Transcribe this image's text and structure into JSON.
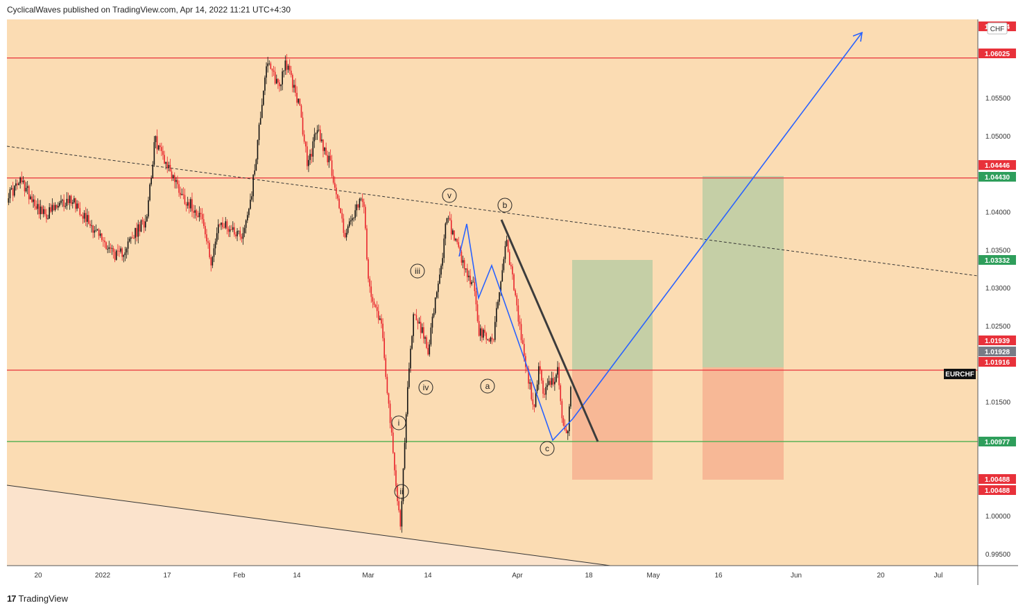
{
  "header": {
    "publisher_line": "CyclicalWaves published on TradingView.com, Apr 14, 2022 11:21 UTC+4:30"
  },
  "footer": {
    "brand": "TradingView",
    "icon": "tradingview-logo-icon"
  },
  "colors": {
    "background": "#fbdcb3",
    "lower_channel_fill": "#fbe3cc",
    "resistance_line": "#e8313a",
    "support_line": "#4caf50",
    "up_candle": "#111111",
    "down_candle": "#e8232b",
    "wave_projection": "#2962ff",
    "target_zone": "#c5cfa6",
    "stop_zone": "#f7b896",
    "downtrend_line": "#3c3c3c"
  },
  "chart_data": {
    "type": "candlestick",
    "symbol": "EURCHF",
    "currency": "CHF",
    "x_tick_labels": [
      "20",
      "2022",
      "17",
      "Feb",
      "14",
      "Mar",
      "14",
      "Apr",
      "18",
      "May",
      "16",
      "Jun",
      "20",
      "Jul"
    ],
    "y_tick_labels": [
      "1.05500",
      "1.05000",
      "1.04000",
      "1.03500",
      "1.03000",
      "1.02500",
      "1.01500",
      "1.00000",
      "0.99500"
    ],
    "ylim": [
      0.9937,
      1.0644
    ],
    "price_labels": [
      {
        "value": "1.06614",
        "color": "#e8313a",
        "note": "partially hidden by CHF badge"
      },
      {
        "value": "1.06025",
        "color": "#e8313a"
      },
      {
        "value": "1.04446",
        "color": "#e8313a"
      },
      {
        "value": "1.04430",
        "color": "#2e9e5b"
      },
      {
        "value": "1.03332",
        "color": "#2e9e5b"
      },
      {
        "value": "1.01939",
        "color": "#e8313a"
      },
      {
        "value": "1.01928",
        "color": "#787b86"
      },
      {
        "value": "1.01916",
        "color": "#e8313a"
      },
      {
        "value": "1.00977",
        "color": "#2e9e5b"
      },
      {
        "value": "1.00488",
        "color": "#e8313a"
      },
      {
        "value": "1.00488",
        "color": "#e8313a"
      }
    ],
    "horizontal_levels": [
      {
        "value": 1.06614,
        "color": "#e8313a"
      },
      {
        "value": 1.06025,
        "color": "#e8313a"
      },
      {
        "value": 1.04446,
        "color": "#e8313a"
      },
      {
        "value": 1.01916,
        "color": "#e8313a"
      },
      {
        "value": 1.00977,
        "color": "#4caf50"
      }
    ],
    "wave_labels": [
      "v",
      "iii",
      "iv",
      "i",
      "ii",
      "b",
      "a",
      "c"
    ],
    "price_anchors": [
      {
        "date": "2021-12-13",
        "price": 1.042
      },
      {
        "date": "2021-12-16",
        "price": 1.044
      },
      {
        "date": "2021-12-21",
        "price": 1.0395
      },
      {
        "date": "2021-12-27",
        "price": 1.0418
      },
      {
        "date": "2022-01-03",
        "price": 1.036
      },
      {
        "date": "2022-01-06",
        "price": 1.034
      },
      {
        "date": "2022-01-12",
        "price": 1.039
      },
      {
        "date": "2022-01-14",
        "price": 1.0495
      },
      {
        "date": "2022-01-20",
        "price": 1.042
      },
      {
        "date": "2022-01-24",
        "price": 1.0395
      },
      {
        "date": "2022-01-26",
        "price": 1.0335
      },
      {
        "date": "2022-01-28",
        "price": 1.0385
      },
      {
        "date": "2022-02-02",
        "price": 1.037
      },
      {
        "date": "2022-02-04",
        "price": 1.043
      },
      {
        "date": "2022-02-07",
        "price": 1.0595
      },
      {
        "date": "2022-02-10",
        "price": 1.0565
      },
      {
        "date": "2022-02-11",
        "price": 1.06
      },
      {
        "date": "2022-02-14",
        "price": 1.0545
      },
      {
        "date": "2022-02-16",
        "price": 1.046
      },
      {
        "date": "2022-02-18",
        "price": 1.051
      },
      {
        "date": "2022-02-21",
        "price": 1.046
      },
      {
        "date": "2022-02-24",
        "price": 1.037
      },
      {
        "date": "2022-02-28",
        "price": 1.042
      },
      {
        "date": "2022-03-01",
        "price": 1.031
      },
      {
        "date": "2022-03-04",
        "price": 1.025
      },
      {
        "date": "2022-03-07",
        "price": 1.004
      },
      {
        "date": "2022-03-08",
        "price": 0.999
      },
      {
        "date": "2022-03-09",
        "price": 1.01
      },
      {
        "date": "2022-03-10",
        "price": 1.021
      },
      {
        "date": "2022-03-11",
        "price": 1.027
      },
      {
        "date": "2022-03-14",
        "price": 1.022
      },
      {
        "date": "2022-03-15",
        "price": 1.026
      },
      {
        "date": "2022-03-17",
        "price": 1.033
      },
      {
        "date": "2022-03-18",
        "price": 1.0395
      },
      {
        "date": "2022-03-22",
        "price": 1.032
      },
      {
        "date": "2022-03-24",
        "price": 1.03
      },
      {
        "date": "2022-03-25",
        "price": 1.024
      },
      {
        "date": "2022-03-28",
        "price": 1.023
      },
      {
        "date": "2022-03-29",
        "price": 1.028
      },
      {
        "date": "2022-03-31",
        "price": 1.0365
      },
      {
        "date": "2022-04-01",
        "price": 1.032
      },
      {
        "date": "2022-04-04",
        "price": 1.02
      },
      {
        "date": "2022-04-06",
        "price": 1.014
      },
      {
        "date": "2022-04-07",
        "price": 1.02
      },
      {
        "date": "2022-04-08",
        "price": 1.016
      },
      {
        "date": "2022-04-11",
        "price": 1.019
      },
      {
        "date": "2022-04-12",
        "price": 1.012
      },
      {
        "date": "2022-04-13",
        "price": 1.01
      },
      {
        "date": "2022-04-14",
        "price": 1.0185
      }
    ]
  }
}
